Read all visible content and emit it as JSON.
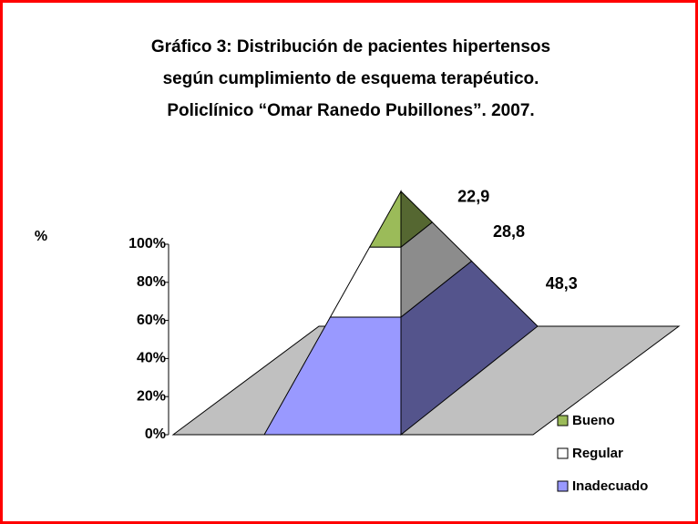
{
  "chart_data": {
    "type": "pyramid",
    "title": [
      "Gráfico 3: Distribución de pacientes hipertensos",
      "según cumplimiento de esquema terapéutico.",
      "Policlínico “Omar Ranedo Pubillones”. 2007."
    ],
    "y_label": "%",
    "categories": [
      "Bueno",
      "Regular",
      "Inadecuado"
    ],
    "values": [
      22.9,
      28.8,
      48.3
    ],
    "value_labels": [
      "22,9",
      "28,8",
      "48,3"
    ],
    "colors": [
      "#9bbb59",
      "#ffffff",
      "#9999ff"
    ],
    "ylim": [
      0,
      100
    ],
    "yticks": [
      {
        "value": 0,
        "label": "0%"
      },
      {
        "value": 20,
        "label": "20%"
      },
      {
        "value": 40,
        "label": "40%"
      },
      {
        "value": 60,
        "label": "60%"
      },
      {
        "value": 80,
        "label": "80%"
      },
      {
        "value": 100,
        "label": "100%"
      }
    ],
    "legend": "bottom-right"
  }
}
